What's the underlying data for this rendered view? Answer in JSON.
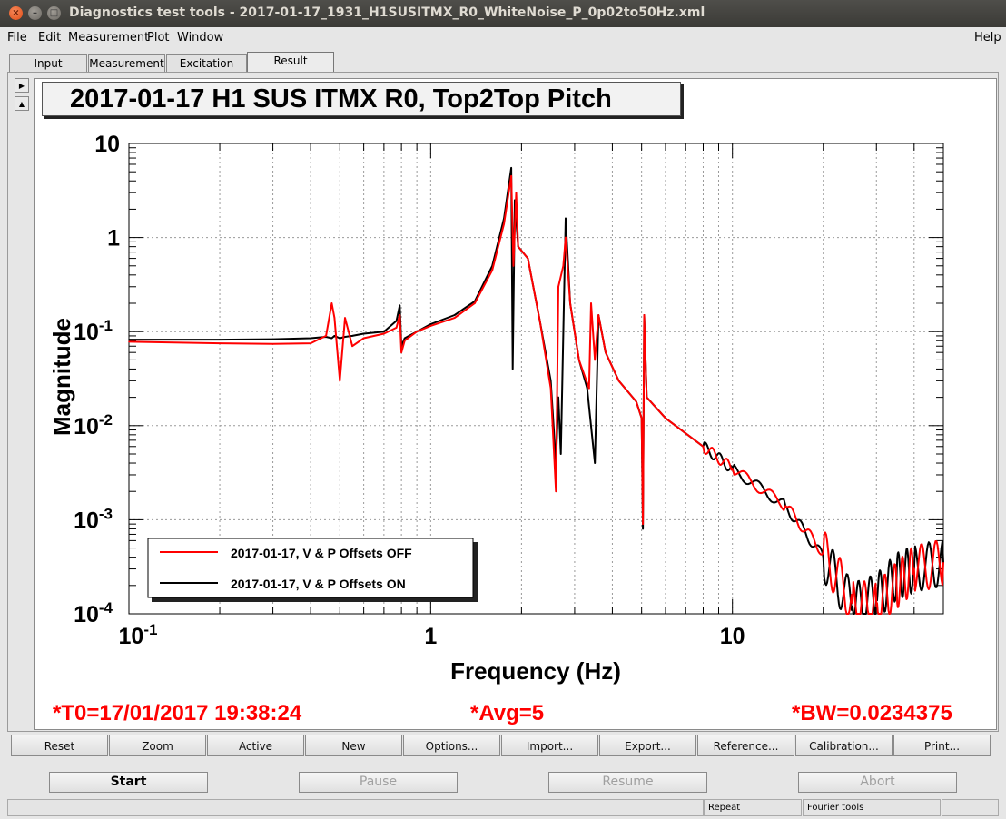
{
  "window": {
    "title": "Diagnostics test tools - 2017-01-17_1931_H1SUSITMX_R0_WhiteNoise_P_0p02to50Hz.xml"
  },
  "menu": {
    "file": "File",
    "edit": "Edit",
    "measurement": "Measurement",
    "plot": "Plot",
    "window": "Window",
    "help": "Help"
  },
  "tabs": [
    "Input",
    "Measurement",
    "Excitation",
    "Result"
  ],
  "plot": {
    "title": "2017-01-17 H1 SUS ITMX R0, Top2Top Pitch"
  },
  "footer": {
    "t0": "*T0=17/01/2017 19:38:24",
    "avg": "*Avg=5",
    "bw": "*BW=0.0234375"
  },
  "buttons": [
    "Reset",
    "Zoom",
    "Active",
    "New",
    "Options...",
    "Import...",
    "Export...",
    "Reference...",
    "Calibration...",
    "Print..."
  ],
  "controls": {
    "start": "Start",
    "pause": "Pause",
    "resume": "Resume",
    "abort": "Abort"
  },
  "status": {
    "repeat": "Repeat",
    "fourier": "Fourier tools"
  },
  "colors": {
    "series_off": "#ff0000",
    "series_on": "#000000",
    "footer_text": "#ff0000"
  },
  "chart_data": {
    "type": "line",
    "title": "2017-01-17 H1 SUS ITMX R0, Top2Top Pitch",
    "xlabel": "Frequency (Hz)",
    "ylabel": "Magnitude",
    "xscale": "log",
    "yscale": "log",
    "xlim": [
      0.1,
      50
    ],
    "ylim": [
      0.0001,
      10
    ],
    "x_ticks": [
      "10^-1",
      "1",
      "10"
    ],
    "y_ticks": [
      "10^-4",
      "10^-3",
      "10^-2",
      "10^-1",
      "1",
      "10"
    ],
    "grid": true,
    "legend_position": "bottom-left",
    "series": [
      {
        "name": "2017-01-17, V & P Offsets OFF",
        "color": "#ff0000",
        "x": [
          0.1,
          0.2,
          0.3,
          0.4,
          0.45,
          0.47,
          0.48,
          0.5,
          0.52,
          0.55,
          0.6,
          0.7,
          0.77,
          0.79,
          0.8,
          0.82,
          0.9,
          1.0,
          1.2,
          1.4,
          1.6,
          1.75,
          1.85,
          1.88,
          1.92,
          1.95,
          2.1,
          2.3,
          2.5,
          2.6,
          2.65,
          2.75,
          2.8,
          2.9,
          3.1,
          3.35,
          3.4,
          3.5,
          3.6,
          3.8,
          4.2,
          4.8,
          5.0,
          5.05,
          5.1,
          5.2,
          6,
          8,
          10,
          15,
          20,
          25,
          30,
          35,
          40,
          50
        ],
        "y": [
          0.078,
          0.075,
          0.074,
          0.075,
          0.09,
          0.2,
          0.14,
          0.03,
          0.14,
          0.07,
          0.085,
          0.095,
          0.11,
          0.15,
          0.06,
          0.08,
          0.1,
          0.115,
          0.14,
          0.2,
          0.45,
          1.4,
          4.5,
          0.5,
          3.0,
          0.8,
          0.6,
          0.13,
          0.025,
          0.002,
          0.3,
          0.5,
          1.0,
          0.2,
          0.05,
          0.025,
          0.2,
          0.05,
          0.15,
          0.06,
          0.03,
          0.018,
          0.012,
          0.0009,
          0.15,
          0.02,
          0.012,
          0.006,
          0.0035,
          0.0014,
          0.00045,
          0.00013,
          0.00012,
          0.0002,
          0.0003,
          0.00035
        ]
      },
      {
        "name": "2017-01-17, V & P Offsets ON",
        "color": "#000000",
        "x": [
          0.1,
          0.2,
          0.3,
          0.4,
          0.45,
          0.47,
          0.48,
          0.5,
          0.52,
          0.55,
          0.6,
          0.7,
          0.77,
          0.79,
          0.8,
          0.82,
          0.9,
          1.0,
          1.2,
          1.4,
          1.6,
          1.75,
          1.85,
          1.87,
          1.9,
          1.95,
          2.1,
          2.3,
          2.5,
          2.6,
          2.65,
          2.7,
          2.8,
          2.9,
          3.1,
          3.3,
          3.5,
          3.6,
          3.8,
          4.2,
          4.8,
          5.0,
          5.05,
          5.1,
          5.2,
          6,
          8,
          10,
          15,
          20,
          25,
          30,
          35,
          40,
          50
        ],
        "y": [
          0.082,
          0.082,
          0.083,
          0.085,
          0.088,
          0.085,
          0.09,
          0.085,
          0.088,
          0.09,
          0.095,
          0.1,
          0.13,
          0.19,
          0.07,
          0.085,
          0.1,
          0.12,
          0.15,
          0.21,
          0.5,
          1.6,
          5.5,
          0.04,
          2.5,
          0.8,
          0.6,
          0.13,
          0.03,
          0.004,
          0.02,
          0.005,
          1.6,
          0.2,
          0.05,
          0.025,
          0.004,
          0.15,
          0.06,
          0.03,
          0.018,
          0.012,
          0.0008,
          0.15,
          0.02,
          0.012,
          0.006,
          0.0035,
          0.0014,
          0.0004,
          0.00012,
          0.00015,
          0.00025,
          0.0003,
          0.00035
        ]
      }
    ]
  }
}
